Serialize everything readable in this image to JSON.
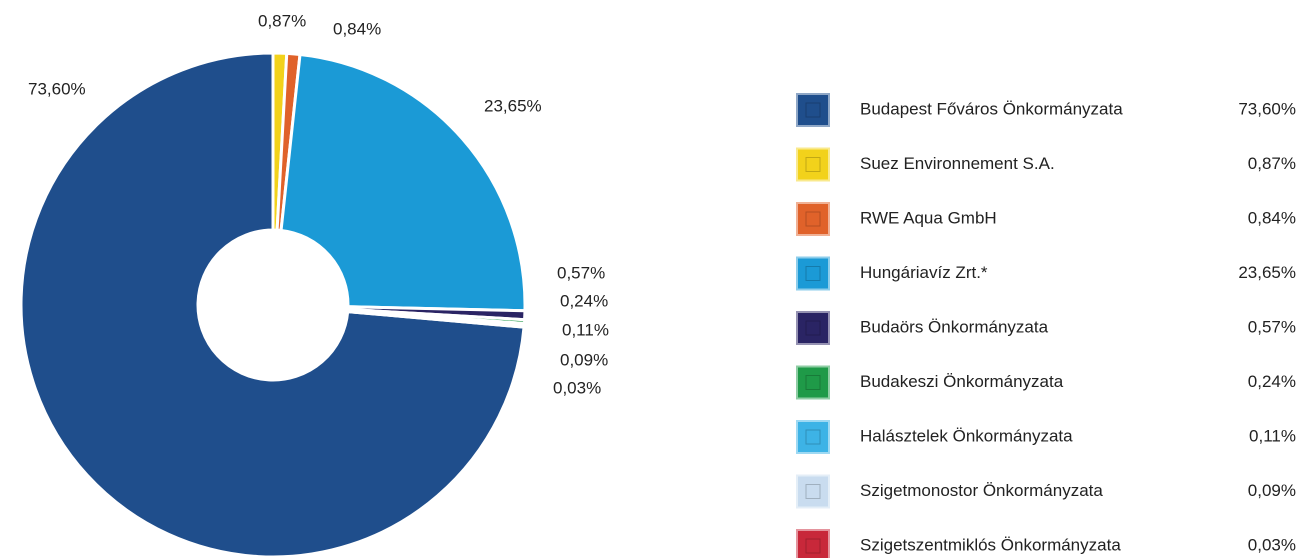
{
  "chart_data": {
    "type": "pie",
    "categories": [
      "Budapest Főváros Önkormányzata",
      "Suez Environnement S.A.",
      "RWE Aqua GmbH",
      "Hungáriavíz Zrt.*",
      "Budaörs Önkormányzata",
      "Budakeszi Önkormányzata",
      "Halásztelek Önkormányzata",
      "Szigetmonostor Önkormányzata",
      "Szigetszentmiklós Önkormányzata"
    ],
    "values": [
      73.6,
      0.87,
      0.84,
      23.65,
      0.57,
      0.24,
      0.11,
      0.09,
      0.03
    ],
    "value_labels": [
      "73,60%",
      "0,87%",
      "0,84%",
      "23,65%",
      "0,57%",
      "0,24%",
      "0,11%",
      "0,09%",
      "0,03%"
    ],
    "colors": [
      "#1f4e8c",
      "#f2d21b",
      "#e0622a",
      "#1b9ad6",
      "#2a2464",
      "#1f9a48",
      "#3db3e6",
      "#c9dcef",
      "#c8283a"
    ],
    "donut": true
  }
}
